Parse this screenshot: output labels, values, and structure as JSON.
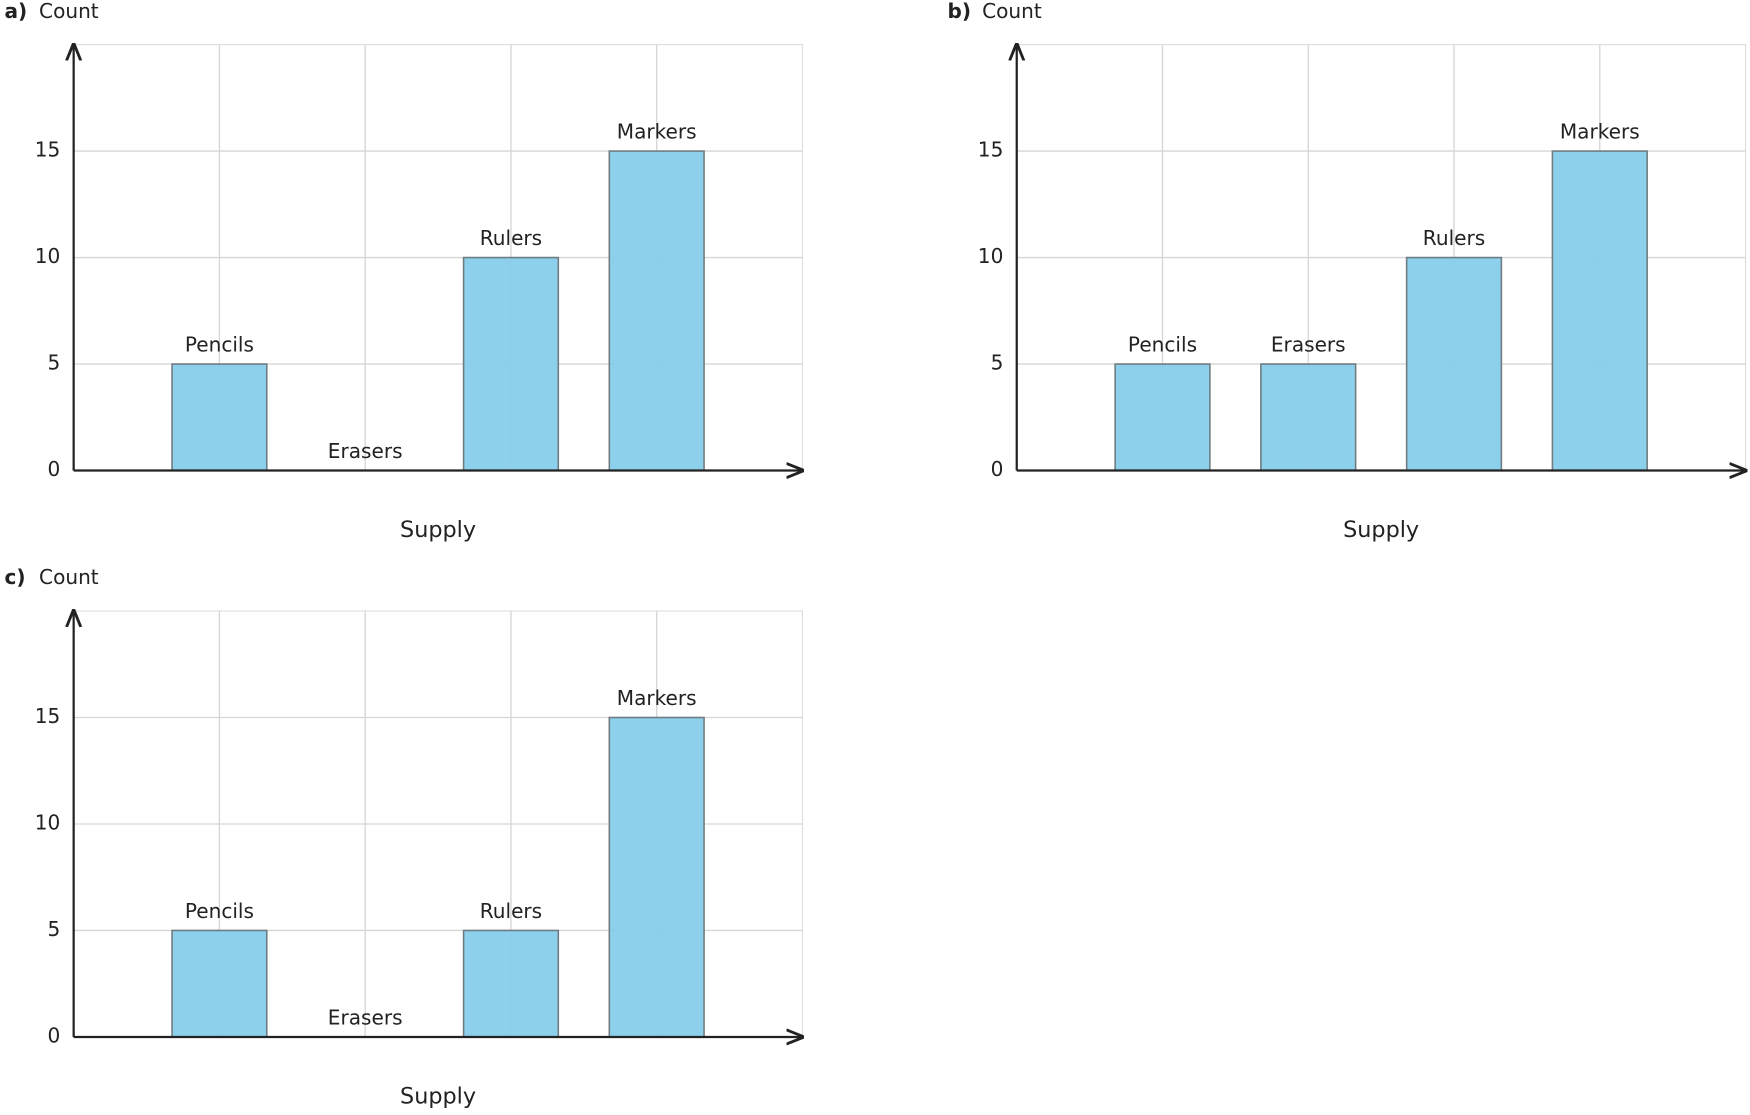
{
  "chart_data": [
    {
      "type": "bar",
      "panel_label": "a)",
      "ylabel": "Count",
      "xlabel": "Supply",
      "categories": [
        "Pencils",
        "Erasers",
        "Rulers",
        "Markers"
      ],
      "values": [
        5,
        0,
        10,
        15
      ],
      "color": "#87ceeb",
      "ylim": [
        0,
        20
      ],
      "yticks": [
        0,
        5,
        10,
        15
      ],
      "grid": true
    },
    {
      "type": "bar",
      "panel_label": "b)",
      "ylabel": "Count",
      "xlabel": "Supply",
      "categories": [
        "Pencils",
        "Erasers",
        "Rulers",
        "Markers"
      ],
      "values": [
        5,
        5,
        10,
        15
      ],
      "color": "#87ceeb",
      "ylim": [
        0,
        20
      ],
      "yticks": [
        0,
        5,
        10,
        15
      ],
      "grid": true
    },
    {
      "type": "bar",
      "panel_label": "c)",
      "ylabel": "Count",
      "xlabel": "Supply",
      "categories": [
        "Pencils",
        "Erasers",
        "Rulers",
        "Markers"
      ],
      "values": [
        5,
        0,
        5,
        15
      ],
      "color": "#87ceeb",
      "ylim": [
        0,
        20
      ],
      "yticks": [
        0,
        5,
        10,
        15
      ],
      "grid": true
    }
  ]
}
